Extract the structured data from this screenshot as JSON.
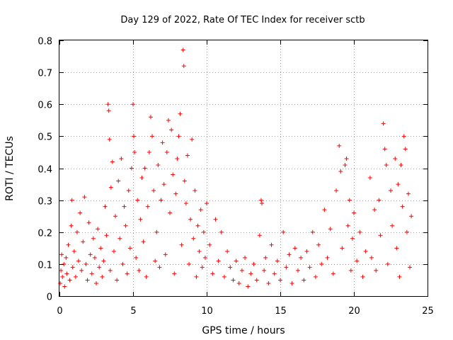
{
  "chart_data": {
    "type": "scatter",
    "title": "Day 129 of 2022, Rate Of TEC Index for receiver sctb",
    "xlabel": "GPS time / hours",
    "ylabel": "ROTI / TECUs",
    "xlim": [
      0,
      25
    ],
    "ylim": [
      0,
      0.8
    ],
    "xticks": [
      0,
      5,
      10,
      15,
      20,
      25
    ],
    "yticks": [
      0,
      0.1,
      0.2,
      0.3,
      0.4,
      0.5,
      0.6,
      0.7,
      0.8
    ],
    "xtick_labels": [
      "0",
      "5",
      "10",
      "15",
      "20",
      "25"
    ],
    "ytick_labels": [
      "0",
      "0.1",
      "0.2",
      "0.3",
      "0.4",
      "0.5",
      "0.6",
      "0.7",
      "0.8"
    ],
    "grid": true,
    "marker": "plus",
    "color": "#ff0000",
    "series": [
      {
        "points": [
          [
            0.05,
            0.04
          ],
          [
            0.1,
            0.08
          ],
          [
            0.15,
            0.13
          ],
          [
            0.2,
            0.06
          ],
          [
            0.3,
            0.1
          ],
          [
            0.35,
            0.03
          ],
          [
            0.45,
            0.12
          ],
          [
            0.5,
            0.07
          ],
          [
            0.6,
            0.16
          ],
          [
            0.7,
            0.05
          ],
          [
            0.8,
            0.22
          ],
          [
            0.85,
            0.3
          ],
          [
            0.9,
            0.09
          ],
          [
            1.0,
            0.14
          ],
          [
            1.1,
            0.06
          ],
          [
            1.2,
            0.2
          ],
          [
            1.3,
            0.11
          ],
          [
            1.4,
            0.26
          ],
          [
            1.5,
            0.08
          ],
          [
            1.6,
            0.17
          ],
          [
            1.7,
            0.31
          ],
          [
            1.8,
            0.1
          ],
          [
            1.9,
            0.05
          ],
          [
            2.0,
            0.23
          ],
          [
            2.1,
            0.13
          ],
          [
            2.2,
            0.07
          ],
          [
            2.3,
            0.18
          ],
          [
            2.4,
            0.12
          ],
          [
            2.5,
            0.04
          ],
          [
            2.6,
            0.21
          ],
          [
            2.7,
            0.09
          ],
          [
            2.8,
            0.15
          ],
          [
            2.9,
            0.06
          ],
          [
            3.0,
            0.11
          ],
          [
            3.1,
            0.28
          ],
          [
            3.2,
            0.19
          ],
          [
            3.3,
            0.6
          ],
          [
            3.35,
            0.58
          ],
          [
            3.4,
            0.49
          ],
          [
            3.45,
            0.08
          ],
          [
            3.5,
            0.34
          ],
          [
            3.6,
            0.42
          ],
          [
            3.7,
            0.14
          ],
          [
            3.8,
            0.25
          ],
          [
            3.9,
            0.05
          ],
          [
            4.0,
            0.36
          ],
          [
            4.1,
            0.18
          ],
          [
            4.2,
            0.43
          ],
          [
            4.3,
            0.1
          ],
          [
            4.4,
            0.28
          ],
          [
            4.5,
            0.22
          ],
          [
            4.6,
            0.07
          ],
          [
            4.7,
            0.33
          ],
          [
            4.8,
            0.15
          ],
          [
            4.9,
            0.4
          ],
          [
            5.0,
            0.6
          ],
          [
            5.05,
            0.5
          ],
          [
            5.1,
            0.45
          ],
          [
            5.2,
            0.12
          ],
          [
            5.3,
            0.3
          ],
          [
            5.4,
            0.08
          ],
          [
            5.5,
            0.24
          ],
          [
            5.6,
            0.37
          ],
          [
            5.7,
            0.17
          ],
          [
            5.8,
            0.4
          ],
          [
            5.9,
            0.06
          ],
          [
            6.0,
            0.28
          ],
          [
            6.1,
            0.45
          ],
          [
            6.2,
            0.56
          ],
          [
            6.3,
            0.5
          ],
          [
            6.4,
            0.33
          ],
          [
            6.5,
            0.11
          ],
          [
            6.6,
            0.2
          ],
          [
            6.7,
            0.41
          ],
          [
            6.8,
            0.09
          ],
          [
            6.9,
            0.3
          ],
          [
            7.0,
            0.48
          ],
          [
            7.1,
            0.35
          ],
          [
            7.2,
            0.13
          ],
          [
            7.3,
            0.45
          ],
          [
            7.4,
            0.55
          ],
          [
            7.5,
            0.26
          ],
          [
            7.6,
            0.52
          ],
          [
            7.7,
            0.38
          ],
          [
            7.8,
            0.07
          ],
          [
            7.9,
            0.32
          ],
          [
            8.0,
            0.43
          ],
          [
            8.1,
            0.5
          ],
          [
            8.2,
            0.57
          ],
          [
            8.3,
            0.16
          ],
          [
            8.4,
            0.77
          ],
          [
            8.45,
            0.72
          ],
          [
            8.5,
            0.36
          ],
          [
            8.6,
            0.29
          ],
          [
            8.7,
            0.44
          ],
          [
            8.8,
            0.1
          ],
          [
            8.9,
            0.24
          ],
          [
            9.0,
            0.49
          ],
          [
            9.1,
            0.18
          ],
          [
            9.2,
            0.33
          ],
          [
            9.3,
            0.06
          ],
          [
            9.4,
            0.22
          ],
          [
            9.5,
            0.14
          ],
          [
            9.6,
            0.27
          ],
          [
            9.7,
            0.09
          ],
          [
            9.8,
            0.2
          ],
          [
            9.9,
            0.12
          ],
          [
            10.0,
            0.29
          ],
          [
            10.2,
            0.16
          ],
          [
            10.4,
            0.07
          ],
          [
            10.6,
            0.24
          ],
          [
            10.8,
            0.11
          ],
          [
            11.0,
            0.2
          ],
          [
            11.2,
            0.06
          ],
          [
            11.4,
            0.14
          ],
          [
            11.6,
            0.09
          ],
          [
            11.8,
            0.05
          ],
          [
            12.0,
            0.11
          ],
          [
            12.2,
            0.04
          ],
          [
            12.4,
            0.08
          ],
          [
            12.6,
            0.12
          ],
          [
            12.8,
            0.03
          ],
          [
            13.0,
            0.07
          ],
          [
            13.2,
            0.1
          ],
          [
            13.4,
            0.05
          ],
          [
            13.6,
            0.19
          ],
          [
            13.7,
            0.3
          ],
          [
            13.75,
            0.29
          ],
          [
            13.9,
            0.08
          ],
          [
            14.0,
            0.12
          ],
          [
            14.2,
            0.04
          ],
          [
            14.4,
            0.16
          ],
          [
            14.6,
            0.07
          ],
          [
            14.8,
            0.11
          ],
          [
            15.0,
            0.05
          ],
          [
            15.2,
            0.2
          ],
          [
            15.4,
            0.09
          ],
          [
            15.6,
            0.13
          ],
          [
            15.8,
            0.04
          ],
          [
            16.0,
            0.15
          ],
          [
            16.2,
            0.08
          ],
          [
            16.4,
            0.12
          ],
          [
            16.6,
            0.05
          ],
          [
            16.8,
            0.14
          ],
          [
            17.0,
            0.09
          ],
          [
            17.2,
            0.2
          ],
          [
            17.4,
            0.06
          ],
          [
            17.6,
            0.16
          ],
          [
            17.8,
            0.1
          ],
          [
            18.0,
            0.27
          ],
          [
            18.2,
            0.12
          ],
          [
            18.4,
            0.21
          ],
          [
            18.6,
            0.07
          ],
          [
            18.8,
            0.33
          ],
          [
            19.0,
            0.47
          ],
          [
            19.1,
            0.39
          ],
          [
            19.2,
            0.15
          ],
          [
            19.4,
            0.41
          ],
          [
            19.5,
            0.43
          ],
          [
            19.6,
            0.22
          ],
          [
            19.7,
            0.3
          ],
          [
            19.8,
            0.08
          ],
          [
            19.9,
            0.18
          ],
          [
            20.0,
            0.26
          ],
          [
            20.2,
            0.11
          ],
          [
            20.4,
            0.2
          ],
          [
            20.6,
            0.06
          ],
          [
            20.8,
            0.14
          ],
          [
            21.1,
            0.37
          ],
          [
            21.2,
            0.12
          ],
          [
            21.4,
            0.27
          ],
          [
            21.5,
            0.08
          ],
          [
            21.7,
            0.3
          ],
          [
            21.8,
            0.19
          ],
          [
            22.0,
            0.54
          ],
          [
            22.1,
            0.46
          ],
          [
            22.2,
            0.41
          ],
          [
            22.3,
            0.1
          ],
          [
            22.5,
            0.33
          ],
          [
            22.6,
            0.22
          ],
          [
            22.8,
            0.43
          ],
          [
            22.9,
            0.15
          ],
          [
            23.0,
            0.35
          ],
          [
            23.1,
            0.06
          ],
          [
            23.2,
            0.41
          ],
          [
            23.3,
            0.28
          ],
          [
            23.4,
            0.5
          ],
          [
            23.5,
            0.46
          ],
          [
            23.6,
            0.2
          ],
          [
            23.7,
            0.32
          ],
          [
            23.8,
            0.09
          ],
          [
            23.9,
            0.25
          ]
        ]
      }
    ]
  }
}
